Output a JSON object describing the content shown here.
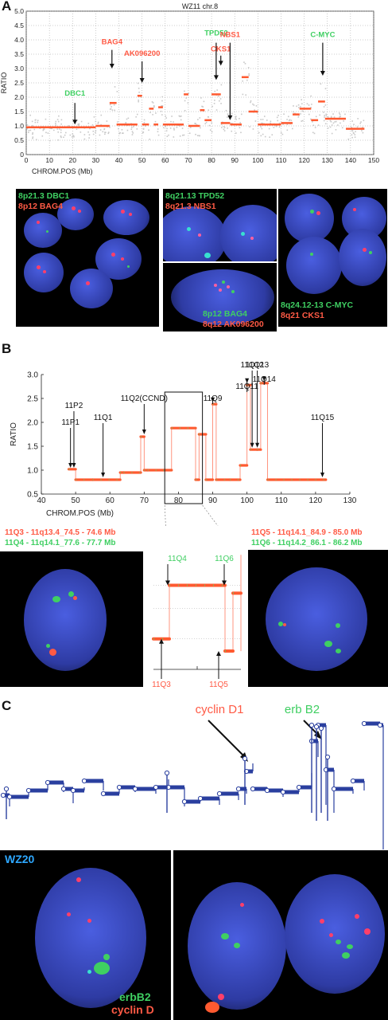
{
  "panel_a": {
    "letter": "A",
    "photo_labels": {
      "p1": [
        "8p21.3 DBC1",
        "8p12 BAG4"
      ],
      "p2": [
        "8q21.13 TPD52",
        "8q21.3 NBS1"
      ],
      "p3": [
        "8p12 BAG4",
        "8q12 AK096200"
      ],
      "p4": [
        "8q24.12-13 C-MYC",
        "8q21 CKS1"
      ]
    }
  },
  "panel_b": {
    "letter": "B",
    "caption_left": [
      "11Q3 - 11q13.4_74.5 - 74.6 Mb",
      "11Q4 - 11q14.1_77.6 - 77.7 Mb"
    ],
    "caption_right": [
      "11Q5 - 11q14.1_84.9 - 85.0 Mb",
      "11Q6 - 11q14.2_86.1 - 86.2 Mb"
    ],
    "zoom_labels": {
      "top_left": "11Q4",
      "top_right": "11Q6",
      "bottom_left": "11Q3",
      "bottom_right": "11Q5"
    }
  },
  "panel_c": {
    "letter": "C",
    "gene_labels": [
      "cyclin D1",
      "erb B2"
    ],
    "sample": "WZ20",
    "legend": [
      "erbB2",
      "cyclin D"
    ]
  },
  "colors": {
    "red": "#ff5a45",
    "green": "#3fcf62",
    "blue": "#2a3f9f",
    "cell": "#3a4dc8"
  },
  "chart_data": [
    {
      "type": "line",
      "title": "WZ11 chr.8",
      "xlabel": "CHROM.POS (Mb)",
      "ylabel": "RATIO",
      "xlim": [
        0,
        150
      ],
      "ylim": [
        0,
        5
      ],
      "xticks": [
        0,
        10,
        20,
        30,
        40,
        50,
        60,
        70,
        80,
        90,
        100,
        110,
        120,
        130,
        140,
        150
      ],
      "yticks": [
        0,
        0.5,
        1.0,
        1.5,
        2.0,
        2.5,
        3.0,
        3.5,
        4.0,
        4.5,
        5.0
      ],
      "grid": true,
      "segments": [
        {
          "x0": 0,
          "x1": 30,
          "y": 0.95
        },
        {
          "x0": 30,
          "x1": 36,
          "y": 1.0
        },
        {
          "x0": 36,
          "x1": 39,
          "y": 1.8
        },
        {
          "x0": 39,
          "x1": 48,
          "y": 1.05
        },
        {
          "x0": 48,
          "x1": 50,
          "y": 2.05
        },
        {
          "x0": 50,
          "x1": 53,
          "y": 1.05
        },
        {
          "x0": 53,
          "x1": 55,
          "y": 1.6
        },
        {
          "x0": 55,
          "x1": 57,
          "y": 1.05
        },
        {
          "x0": 57,
          "x1": 59,
          "y": 1.65
        },
        {
          "x0": 59,
          "x1": 68,
          "y": 1.05
        },
        {
          "x0": 68,
          "x1": 70,
          "y": 2.1
        },
        {
          "x0": 70,
          "x1": 75,
          "y": 1.0
        },
        {
          "x0": 75,
          "x1": 77,
          "y": 1.55
        },
        {
          "x0": 77,
          "x1": 80,
          "y": 1.2
        },
        {
          "x0": 80,
          "x1": 84,
          "y": 2.1
        },
        {
          "x0": 84,
          "x1": 88,
          "y": 1.1
        },
        {
          "x0": 88,
          "x1": 93,
          "y": 1.05
        },
        {
          "x0": 93,
          "x1": 96,
          "y": 2.7
        },
        {
          "x0": 96,
          "x1": 98,
          "y": 1.5
        },
        {
          "x0": 98,
          "x1": 100,
          "y": 1.5
        },
        {
          "x0": 100,
          "x1": 110,
          "y": 1.05
        },
        {
          "x0": 110,
          "x1": 115,
          "y": 1.1
        },
        {
          "x0": 115,
          "x1": 118,
          "y": 1.4
        },
        {
          "x0": 118,
          "x1": 123,
          "y": 1.6
        },
        {
          "x0": 123,
          "x1": 126,
          "y": 1.2
        },
        {
          "x0": 126,
          "x1": 129,
          "y": 1.85
        },
        {
          "x0": 129,
          "x1": 138,
          "y": 1.25
        },
        {
          "x0": 138,
          "x1": 144,
          "y": 0.9
        },
        {
          "x0": 144,
          "x1": 146,
          "y": 0.9
        }
      ],
      "annotations": [
        {
          "label": "DBC1",
          "x": 21,
          "color": "green",
          "text_y": 2.05,
          "arrow_from": 1.8,
          "arrow_to": 1.05
        },
        {
          "label": "BAG4",
          "x": 37,
          "color": "red",
          "text_y": 3.85,
          "arrow_from": 3.65,
          "arrow_to": 3.0
        },
        {
          "label": "AK096200",
          "x": 50,
          "color": "red",
          "text_y": 3.45,
          "arrow_from": 3.25,
          "arrow_to": 2.5
        },
        {
          "label": "TPD52",
          "x": 82,
          "color": "green",
          "text_y": 4.15,
          "arrow_from": 3.9,
          "arrow_to": 2.6
        },
        {
          "label": "CKS1",
          "x": 84,
          "color": "red",
          "text_y": 3.6,
          "arrow_from": 3.45,
          "arrow_to": 3.1
        },
        {
          "label": "NBS1",
          "x": 88,
          "color": "red",
          "text_y": 4.1,
          "arrow_from": 3.9,
          "arrow_to": 1.2
        },
        {
          "label": "C-MYC",
          "x": 128,
          "color": "green",
          "text_y": 4.1,
          "arrow_from": 3.9,
          "arrow_to": 2.75
        }
      ]
    },
    {
      "type": "line",
      "xlabel": "CHROM.POS (Mb)",
      "ylabel": "RATIO",
      "xlim": [
        40,
        130
      ],
      "ylim": [
        0.5,
        3.0
      ],
      "xticks": [
        40,
        50,
        60,
        70,
        80,
        90,
        100,
        110,
        120,
        130
      ],
      "yticks": [
        0.5,
        1.0,
        1.5,
        2.0,
        2.5,
        3.0
      ],
      "step_x": [
        48,
        50,
        50,
        55,
        55,
        63,
        63,
        64,
        64,
        69,
        69,
        70,
        70,
        71,
        71,
        78,
        78,
        85,
        85,
        86,
        86,
        88,
        88,
        90,
        90,
        91,
        91,
        95,
        95,
        98,
        98,
        100,
        100,
        101,
        101,
        103,
        103,
        104,
        104,
        106,
        106,
        123
      ],
      "step_y": [
        1.02,
        1.02,
        0.8,
        0.8,
        0.8,
        0.8,
        0.95,
        0.95,
        0.95,
        0.95,
        1.7,
        1.7,
        1.0,
        1.0,
        1.0,
        1.0,
        1.88,
        1.88,
        0.8,
        0.8,
        1.75,
        1.75,
        0.8,
        0.8,
        2.38,
        2.38,
        0.8,
        0.8,
        0.8,
        0.8,
        1.1,
        1.1,
        2.78,
        2.78,
        1.43,
        1.43,
        1.43,
        1.43,
        2.82,
        2.82,
        0.8,
        0.8
      ],
      "box": {
        "x0": 76,
        "x1": 87
      },
      "annotations": [
        {
          "label": "11P1",
          "x": 48.5,
          "text_y": 1.95,
          "arrow_to": 1.05
        },
        {
          "label": "11P2",
          "x": 49.5,
          "text_y": 2.3,
          "arrow_to": 1.05
        },
        {
          "label": "11Q1",
          "x": 58,
          "text_y": 2.05,
          "arrow_to": 0.85
        },
        {
          "label": "11Q2(CCND)",
          "x": 70,
          "text_y": 2.45,
          "arrow_to": 1.75
        },
        {
          "label": "11Q9",
          "x": 90,
          "text_y": 2.45,
          "arrow_to": 2.42
        },
        {
          "label": "11Q11",
          "x": 100,
          "text_y": 2.7,
          "arrow_to": 2.82
        },
        {
          "label": "11Q12",
          "x": 101.5,
          "text_y": 3.15,
          "arrow_to": 1.47
        },
        {
          "label": "11Q13",
          "x": 103,
          "text_y": 3.15,
          "arrow_to": 1.47
        },
        {
          "label": "11Q14",
          "x": 105,
          "text_y": 2.85,
          "arrow_to": 2.86
        },
        {
          "label": "11Q15",
          "x": 122,
          "text_y": 2.05,
          "arrow_to": 0.85
        }
      ]
    }
  ]
}
